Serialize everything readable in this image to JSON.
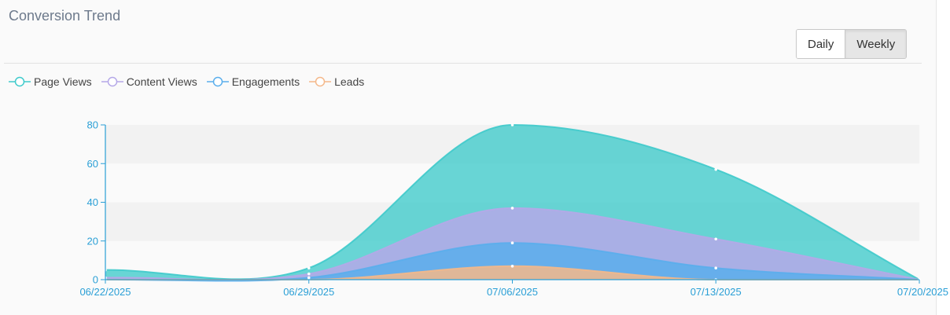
{
  "header": {
    "title": "Conversion Trend"
  },
  "toggle": {
    "daily_label": "Daily",
    "weekly_label": "Weekly",
    "selected": "Weekly"
  },
  "colors": {
    "page_views": "#3fcacb",
    "content_views": "#b5a8e8",
    "engagements": "#5aaeec",
    "leads": "#f4b88a",
    "axis": "#2a9fd6"
  },
  "chart_data": {
    "type": "area",
    "title": "Conversion Trend",
    "xlabel": "",
    "ylabel": "",
    "categories": [
      "06/22/2025",
      "06/29/2025",
      "07/06/2025",
      "07/13/2025",
      "07/20/2025"
    ],
    "ylim": [
      0,
      80
    ],
    "yticks": [
      0,
      20,
      40,
      60,
      80
    ],
    "legend_position": "top-left",
    "series": [
      {
        "name": "Page Views",
        "key": "page_views",
        "values": [
          5,
          6,
          80,
          57,
          0
        ]
      },
      {
        "name": "Content Views",
        "key": "content_views",
        "values": [
          1,
          3,
          37,
          21,
          0
        ]
      },
      {
        "name": "Engagements",
        "key": "engagements",
        "values": [
          0,
          1,
          19,
          6,
          0
        ]
      },
      {
        "name": "Leads",
        "key": "leads",
        "values": [
          0,
          0,
          7,
          0,
          0
        ]
      }
    ]
  }
}
